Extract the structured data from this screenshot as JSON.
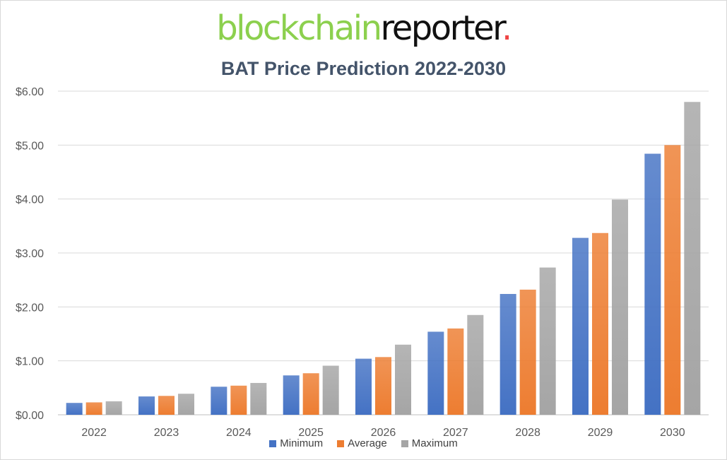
{
  "logo": {
    "part1": "blockchain",
    "part2": "reporter",
    "dot": "."
  },
  "chart_data": {
    "type": "bar",
    "title": "BAT Price Prediction 2022-2030",
    "xlabel": "",
    "ylabel": "",
    "categories": [
      "2022",
      "2023",
      "2024",
      "2025",
      "2026",
      "2027",
      "2028",
      "2029",
      "2030"
    ],
    "series": [
      {
        "name": "Minimum",
        "color": "#4472c4",
        "values": [
          0.22,
          0.34,
          0.52,
          0.73,
          1.04,
          1.54,
          2.24,
          3.28,
          4.84
        ]
      },
      {
        "name": "Average",
        "color": "#ed7d31",
        "values": [
          0.23,
          0.35,
          0.54,
          0.77,
          1.07,
          1.6,
          2.32,
          3.37,
          5.0
        ]
      },
      {
        "name": "Maximum",
        "color": "#a5a5a5",
        "values": [
          0.25,
          0.39,
          0.59,
          0.91,
          1.3,
          1.85,
          2.73,
          3.99,
          5.8
        ]
      }
    ],
    "ylim": [
      0,
      6
    ],
    "yticks": [
      "$0.00",
      "$1.00",
      "$2.00",
      "$3.00",
      "$4.00",
      "$5.00",
      "$6.00"
    ],
    "grid": true,
    "legend": "bottom"
  }
}
